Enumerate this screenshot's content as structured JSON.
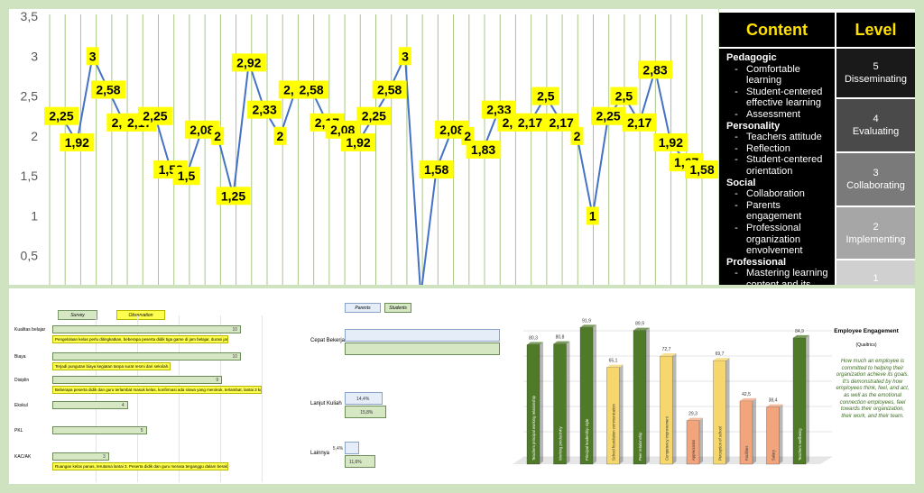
{
  "line_chart": {
    "y_ticks": [
      "3,5",
      "3",
      "2,5",
      "2",
      "1,5",
      "1",
      "0,5"
    ],
    "labels": [
      "2,25",
      "1,92",
      "3",
      "2,58",
      "2,17",
      "2,17",
      "2,25",
      "1,58",
      "1,5",
      "2,08",
      "2",
      "1,25",
      "2,92",
      "2,33",
      "2",
      "2,58",
      "2,58",
      "2,17",
      "2,08",
      "1,92",
      "2,25",
      "2,58",
      "3",
      "",
      "1,58",
      "2,08",
      "2",
      "1,83",
      "2,33",
      "2,17",
      "2,17",
      "2,5",
      "2,17",
      "2",
      "1",
      "2,25",
      "2,5",
      "2,17",
      "2,83",
      "1,92",
      "1,67",
      "1,58"
    ]
  },
  "table": {
    "header_content": "Content",
    "header_level": "Level",
    "categories": [
      {
        "name": "Pedagogic",
        "items": [
          "Comfortable learning",
          "Student-centered effective learning",
          "Assessment"
        ]
      },
      {
        "name": "Personality",
        "items": [
          "Teachers attitude",
          "Reflection",
          "Student-centered orientation"
        ]
      },
      {
        "name": "Social",
        "items": [
          "Collaboration",
          "Parents engagement",
          "Professional organization envolvement"
        ]
      },
      {
        "name": "Professional",
        "items": [
          "Mastering learning content and its teaching method"
        ]
      }
    ],
    "levels": [
      {
        "num": "5",
        "name": "Disseminating",
        "color": "#1a1a1a"
      },
      {
        "num": "4",
        "name": "Evaluating",
        "color": "#4a4a4a"
      },
      {
        "num": "3",
        "name": "Collaborating",
        "color": "#7a7a7a"
      },
      {
        "num": "2",
        "name": "Implementing",
        "color": "#a6a6a6"
      },
      {
        "num": "1",
        "name": "",
        "color": "#d0d0d0"
      }
    ]
  },
  "survey_chart": {
    "legend_survey": "Survey",
    "legend_observation": "Observation",
    "rows": [
      {
        "label": "Kualitas belajar",
        "value": "10",
        "note": "Pengelolaan kelas perlu ditingkatkan, beberapa peserta didik tiga game di jam belajar, durasi jam belajar berkedai."
      },
      {
        "label": "Biaya",
        "value": "10",
        "note": "Terjadi pungutan biaya kegiatan tanpa surat resmi dari sekolah."
      },
      {
        "label": "Disiplin",
        "value": "9",
        "note": "Beberapa peserta didik dan guru terlambat masuk kelas, konfirmasi ada siswa yang merokok, terlambat, lantai 3 kotor."
      },
      {
        "label": "Ekskul",
        "value": "4",
        "note": ""
      },
      {
        "label": "PKL",
        "value": "5",
        "note": ""
      },
      {
        "label": "KAC/AK",
        "value": "3",
        "note": "Ruangan kelas panas, terutama lantai 3. Peserta didik dan guru merasa terganggu dalam beraktivitas."
      }
    ]
  },
  "parents_chart": {
    "legend_parents": "Parents",
    "legend_students": "Students",
    "rows": [
      {
        "label": "Cepat Bekerja",
        "parents": "",
        "students": ""
      },
      {
        "label": "Lanjut Kuliah",
        "parents": "14,4%",
        "students": "15,8%"
      },
      {
        "label": "Lainnya",
        "parents": "5,4%",
        "students": "11,6%"
      }
    ]
  },
  "employee": {
    "title": "Employee Engagement",
    "subtitle": "(Qualtrics)",
    "description": "How much an employee is committed to helping their organization achieve its goals. It's demonstrated by how employees think, feel, and act, as well as the emotional connection employees, feel towards their organization, their work, and their team."
  },
  "chart_data": [
    {
      "type": "line",
      "x": [
        1,
        2,
        3,
        4,
        5,
        6,
        7,
        8,
        9,
        10,
        11,
        12,
        13,
        14,
        15,
        16,
        17,
        18,
        19,
        20,
        21,
        22,
        23,
        24,
        25,
        26,
        27,
        28,
        29,
        30,
        31,
        32,
        33,
        34,
        35,
        36,
        37,
        38,
        39,
        40,
        41,
        42
      ],
      "values": [
        2.25,
        1.92,
        3,
        2.58,
        2.17,
        2.17,
        2.25,
        1.58,
        1.5,
        2.08,
        2,
        1.25,
        2.92,
        2.33,
        2,
        2.58,
        2.58,
        2.17,
        2.08,
        1.92,
        2.25,
        2.58,
        3,
        0,
        1.58,
        2.08,
        2,
        1.83,
        2.33,
        2.17,
        2.17,
        2.5,
        2.17,
        2,
        1,
        2.25,
        2.5,
        2.17,
        2.83,
        1.92,
        1.67,
        1.58
      ],
      "ylim": [
        0,
        3.5
      ],
      "y_ticks": [
        0.5,
        1,
        1.5,
        2,
        2.5,
        3,
        3.5
      ],
      "grid": "vertical",
      "color": "#4472c4"
    },
    {
      "type": "bar",
      "orientation": "horizontal",
      "categories": [
        "Kualitas belajar",
        "Biaya",
        "Disiplin",
        "Ekskul",
        "PKL",
        "KAC/AK"
      ],
      "series": [
        {
          "name": "Survey",
          "values": [
            10,
            10,
            9,
            4,
            5,
            3
          ]
        }
      ],
      "xlim": [
        0,
        11
      ]
    },
    {
      "type": "bar",
      "orientation": "horizontal",
      "categories": [
        "Cepat Bekerja",
        "Lanjut Kuliah",
        "Lainnya"
      ],
      "series": [
        {
          "name": "Parents",
          "values": [
            null,
            14.4,
            5.4
          ]
        },
        {
          "name": "Students",
          "values": [
            null,
            15.8,
            11.6
          ]
        }
      ]
    },
    {
      "type": "bar",
      "categories": [
        "Teachers principal working relationship",
        "Working productivity",
        "Principal leadership style",
        "School foundation communication",
        "Peer relationship",
        "Competency improvement",
        "Appreciation",
        "Perception of school",
        "Facilities",
        "Salary",
        "Teachers wellbeing"
      ],
      "values": [
        80.3,
        80.8,
        91.9,
        65.1,
        89.9,
        72.7,
        29.3,
        69.7,
        42.5,
        38.4,
        84.9
      ],
      "value_labels": [
        "80,3",
        "80,8",
        "91,9",
        "65,1",
        "89,9",
        "72,7",
        "29,3",
        "69,7",
        "42,5",
        "38,4",
        "84,9"
      ],
      "colors": [
        "#4f7a28",
        "#4f7a28",
        "#4f7a28",
        "#f5d76e",
        "#4f7a28",
        "#f5d76e",
        "#f2a47c",
        "#f5d76e",
        "#f2a47c",
        "#f2a47c",
        "#4f7a28"
      ],
      "ylim": [
        0,
        100
      ]
    }
  ]
}
